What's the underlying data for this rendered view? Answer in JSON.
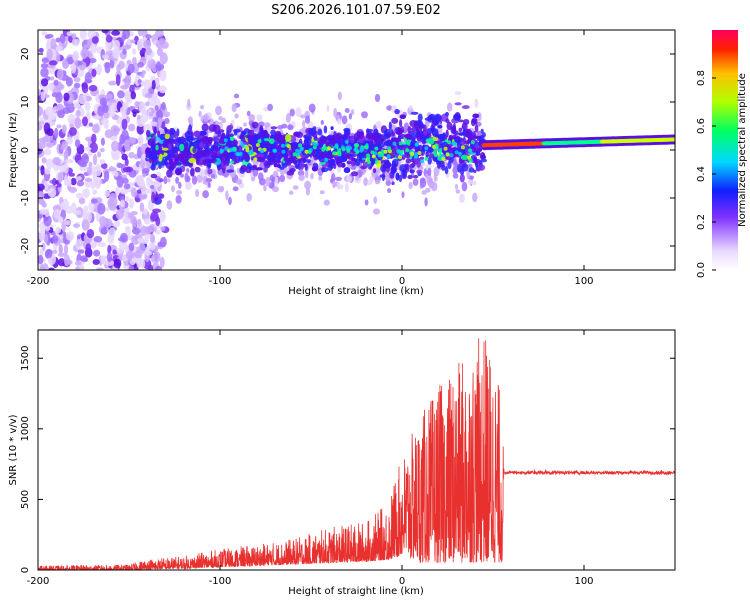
{
  "title": "S206.2026.101.07.59.E02",
  "colors": {
    "snr_line": "#e8302e",
    "axes": "#000000"
  },
  "chart_data": [
    {
      "type": "heatmap",
      "xlabel": "Height of straight line (km)",
      "ylabel": "Frequency (Hz)",
      "xlim": [
        -200,
        150
      ],
      "ylim": [
        -25,
        25
      ],
      "xticks": [
        -200,
        -100,
        0,
        100
      ],
      "yticks": [
        -20,
        -10,
        0,
        10,
        20
      ],
      "colorbar": {
        "label": "Normalized spectral amplitude",
        "range": [
          0,
          1
        ],
        "ticks": [
          "0.0",
          "0.2",
          "0.4",
          "0.6",
          "0.8"
        ],
        "colormap": [
          "#ffffff",
          "#e8d8ff",
          "#8030ff",
          "#1020ff",
          "#00d8ff",
          "#00ff60",
          "#b0ff00",
          "#ffc000",
          "#ff0000"
        ]
      },
      "regions": [
        {
          "name": "noise",
          "x_range": [
            -200,
            -140
          ],
          "freq_spread": 25,
          "amplitude": 0.15
        },
        {
          "name": "scatter",
          "x_range": [
            -140,
            45
          ],
          "freq_center": 0,
          "freq_spread": 10,
          "amplitude": 0.3
        },
        {
          "name": "tone",
          "x_range": [
            45,
            150
          ],
          "freq_start": 1,
          "freq_end": 2,
          "amplitude": 0.95
        }
      ]
    },
    {
      "type": "line",
      "xlabel": "Height of straight line (km)",
      "ylabel": "SNR (10 * v/v)",
      "xlim": [
        -200,
        150
      ],
      "ylim": [
        0,
        1700
      ],
      "xticks": [
        -200,
        -100,
        0,
        100
      ],
      "yticks": [
        0,
        500,
        1000,
        1500
      ],
      "series": [
        {
          "name": "SNR",
          "envelope_x": [
            -200,
            -150,
            -140,
            -120,
            -100,
            -80,
            -60,
            -40,
            -20,
            -10,
            -5,
            0,
            10,
            20,
            30,
            40,
            45,
            50,
            55,
            56,
            60,
            100,
            150
          ],
          "envelope_lo": [
            0,
            0,
            5,
            10,
            20,
            30,
            40,
            50,
            60,
            70,
            80,
            100,
            50,
            50,
            50,
            50,
            50,
            50,
            50,
            680,
            680,
            680,
            680
          ],
          "envelope_hi": [
            30,
            40,
            80,
            100,
            150,
            180,
            220,
            300,
            350,
            450,
            600,
            800,
            1100,
            1300,
            1450,
            1600,
            1700,
            1550,
            1200,
            720,
            720,
            720,
            720
          ]
        }
      ]
    }
  ]
}
